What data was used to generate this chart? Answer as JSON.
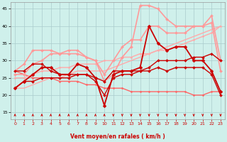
{
  "xlabel": "Vent moyen/en rafales ( km/h )",
  "xlim": [
    -0.5,
    23.5
  ],
  "ylim": [
    13,
    47
  ],
  "yticks": [
    15,
    20,
    25,
    30,
    35,
    40,
    45
  ],
  "xticks": [
    0,
    1,
    2,
    3,
    4,
    5,
    6,
    7,
    8,
    9,
    10,
    11,
    12,
    13,
    14,
    15,
    16,
    17,
    18,
    19,
    20,
    21,
    22,
    23
  ],
  "bg_color": "#cff0eb",
  "grid_color": "#aacccc",
  "series": [
    {
      "x": [
        0,
        1,
        2,
        3,
        4,
        5,
        6,
        7,
        8,
        9,
        10,
        11,
        12,
        13,
        14,
        15,
        16,
        17,
        18,
        19,
        20,
        21,
        22,
        23
      ],
      "y": [
        27,
        26,
        25,
        25,
        25,
        24,
        24,
        24,
        23,
        23,
        22,
        22,
        22,
        21,
        21,
        21,
        21,
        21,
        21,
        21,
        20,
        20,
        21,
        21
      ],
      "color": "#ff6666",
      "lw": 1.0,
      "marker": "D",
      "ms": 1.5
    },
    {
      "x": [
        0,
        1,
        2,
        3,
        4,
        5,
        6,
        7,
        8,
        9,
        10,
        11,
        12,
        13,
        14,
        15,
        16,
        17,
        18,
        19,
        20,
        21,
        22,
        23
      ],
      "y": [
        22,
        22,
        23,
        24,
        25,
        25,
        26,
        27,
        27,
        27,
        27,
        28,
        29,
        30,
        31,
        32,
        33,
        34,
        35,
        36,
        37,
        38,
        39,
        40
      ],
      "color": "#ffaaaa",
      "lw": 1.0,
      "marker": null,
      "ms": 0
    },
    {
      "x": [
        0,
        1,
        2,
        3,
        4,
        5,
        6,
        7,
        8,
        9,
        10,
        11,
        12,
        13,
        14,
        15,
        16,
        17,
        18,
        19,
        20,
        21,
        22,
        23
      ],
      "y": [
        25,
        25,
        26,
        27,
        27,
        28,
        28,
        29,
        29,
        29,
        30,
        30,
        31,
        31,
        32,
        32,
        33,
        33,
        34,
        35,
        36,
        37,
        38,
        40
      ],
      "color": "#ffaaaa",
      "lw": 1.0,
      "marker": "D",
      "ms": 1.5
    },
    {
      "x": [
        0,
        1,
        2,
        3,
        4,
        5,
        6,
        7,
        8,
        9,
        10,
        11,
        12,
        13,
        14,
        15,
        16,
        17,
        18,
        19,
        20,
        21,
        22,
        23
      ],
      "y": [
        27,
        29,
        33,
        33,
        33,
        32,
        32,
        32,
        31,
        30,
        24,
        26,
        31,
        34,
        46,
        46,
        45,
        42,
        40,
        40,
        40,
        40,
        43,
        30
      ],
      "color": "#ff9999",
      "lw": 1.2,
      "marker": "D",
      "ms": 2.0
    },
    {
      "x": [
        0,
        1,
        2,
        3,
        4,
        5,
        6,
        7,
        8,
        9,
        10,
        11,
        12,
        13,
        14,
        15,
        16,
        17,
        18,
        19,
        20,
        21,
        22,
        23
      ],
      "y": [
        26,
        26,
        29,
        30,
        32,
        32,
        33,
        33,
        31,
        30,
        26,
        30,
        34,
        36,
        36,
        40,
        40,
        38,
        38,
        38,
        40,
        40,
        41,
        27
      ],
      "color": "#ff9999",
      "lw": 1.2,
      "marker": "D",
      "ms": 2.0
    },
    {
      "x": [
        0,
        1,
        2,
        3,
        4,
        5,
        6,
        7,
        8,
        9,
        10,
        11,
        12,
        13,
        14,
        15,
        16,
        17,
        18,
        19,
        20,
        21,
        22,
        23
      ],
      "y": [
        22,
        24,
        26,
        28,
        28,
        26,
        26,
        29,
        28,
        25,
        17,
        26,
        27,
        27,
        28,
        40,
        35,
        33,
        34,
        34,
        30,
        30,
        27,
        21
      ],
      "color": "#cc0000",
      "lw": 1.3,
      "marker": "D",
      "ms": 2.5
    },
    {
      "x": [
        0,
        1,
        2,
        3,
        4,
        5,
        6,
        7,
        8,
        9,
        10,
        11,
        12,
        13,
        14,
        15,
        16,
        17,
        18,
        19,
        20,
        21,
        22,
        23
      ],
      "y": [
        22,
        24,
        24,
        25,
        25,
        25,
        25,
        26,
        26,
        24,
        20,
        25,
        26,
        26,
        27,
        27,
        28,
        27,
        28,
        28,
        28,
        28,
        26,
        20
      ],
      "color": "#cc0000",
      "lw": 1.0,
      "marker": "D",
      "ms": 2.0
    },
    {
      "x": [
        0,
        1,
        2,
        3,
        4,
        5,
        6,
        7,
        8,
        9,
        10,
        11,
        12,
        13,
        14,
        15,
        16,
        17,
        18,
        19,
        20,
        21,
        22,
        23
      ],
      "y": [
        27,
        27,
        29,
        29,
        27,
        26,
        26,
        26,
        26,
        25,
        24,
        27,
        27,
        27,
        27,
        28,
        30,
        30,
        30,
        30,
        31,
        31,
        32,
        30
      ],
      "color": "#cc0000",
      "lw": 1.0,
      "marker": "D",
      "ms": 2.0
    }
  ],
  "arrows_up_x": [
    0,
    1,
    2,
    3,
    4,
    5,
    6,
    7,
    8,
    9,
    10
  ],
  "arrows_down_x": [
    11,
    12,
    13,
    14,
    15,
    16,
    17,
    18,
    19,
    20,
    21,
    22,
    23
  ]
}
